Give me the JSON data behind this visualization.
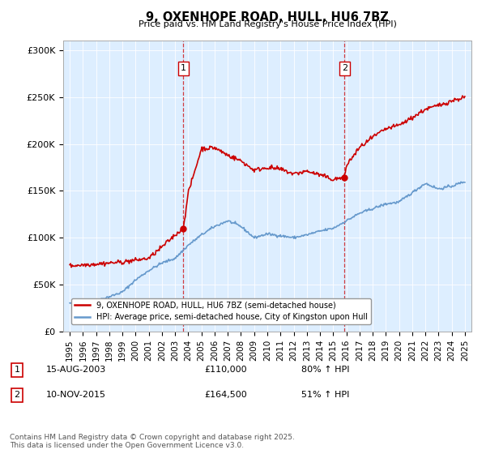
{
  "title": "9, OXENHOPE ROAD, HULL, HU6 7BZ",
  "subtitle": "Price paid vs. HM Land Registry's House Price Index (HPI)",
  "legend_line1": "9, OXENHOPE ROAD, HULL, HU6 7BZ (semi-detached house)",
  "legend_line2": "HPI: Average price, semi-detached house, City of Kingston upon Hull",
  "annotation1_label": "1",
  "annotation1_date": "15-AUG-2003",
  "annotation1_price": "£110,000",
  "annotation1_hpi": "80% ↑ HPI",
  "annotation2_label": "2",
  "annotation2_date": "10-NOV-2015",
  "annotation2_price": "£164,500",
  "annotation2_hpi": "51% ↑ HPI",
  "footer": "Contains HM Land Registry data © Crown copyright and database right 2025.\nThis data is licensed under the Open Government Licence v3.0.",
  "sale1_x": 2003.62,
  "sale1_y": 110000,
  "sale2_x": 2015.86,
  "sale2_y": 164500,
  "red_color": "#cc0000",
  "blue_color": "#6699cc",
  "bg_plot_color": "#ddeeff",
  "vline_color": "#cc0000",
  "ylim": [
    0,
    310000
  ],
  "xlim": [
    1994.5,
    2025.5
  ],
  "hpi_x": [
    1995,
    1996,
    1997,
    1998,
    1999,
    2000,
    2001,
    2002,
    2003,
    2004,
    2005,
    2006,
    2007,
    2008,
    2009,
    2010,
    2011,
    2012,
    2013,
    2014,
    2015,
    2016,
    2017,
    2018,
    2019,
    2020,
    2021,
    2022,
    2023,
    2024,
    2025
  ],
  "hpi_y": [
    30000,
    31000,
    33000,
    37000,
    42000,
    55000,
    65000,
    73000,
    78000,
    92000,
    103000,
    112000,
    118000,
    112000,
    100000,
    104000,
    102000,
    100000,
    103000,
    107000,
    110000,
    118000,
    126000,
    131000,
    136000,
    138000,
    148000,
    158000,
    152000,
    155000,
    160000
  ],
  "red_x": [
    1995,
    1996,
    1997,
    1998,
    1999,
    2000,
    2001,
    2002,
    2003,
    2003.62,
    2004,
    2005,
    2006,
    2007,
    2008,
    2009,
    2010,
    2011,
    2012,
    2013,
    2014,
    2015,
    2015.86,
    2016,
    2017,
    2018,
    2019,
    2020,
    2021,
    2022,
    2023,
    2024,
    2025
  ],
  "red_y": [
    70000,
    71000,
    72000,
    73000,
    74000,
    76000,
    78000,
    90000,
    103000,
    110000,
    148000,
    195000,
    196000,
    188000,
    182000,
    172000,
    175000,
    173000,
    168000,
    171000,
    167000,
    162000,
    164500,
    177000,
    196000,
    207000,
    216000,
    220000,
    228000,
    237000,
    241000,
    246000,
    250000
  ]
}
